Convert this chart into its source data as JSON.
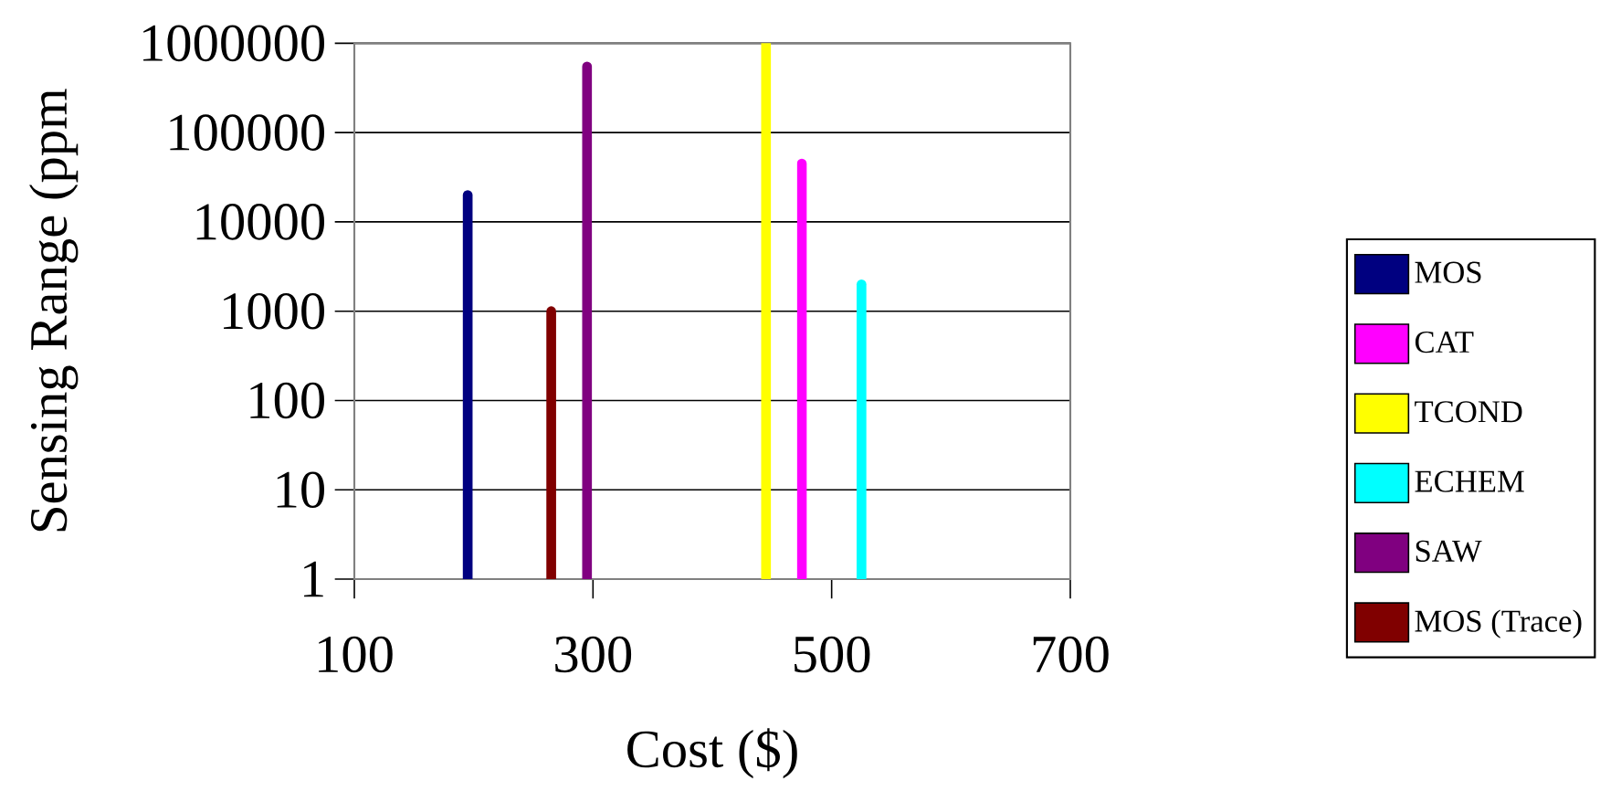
{
  "chart_data": {
    "type": "bar",
    "xlabel": "Cost ($)",
    "ylabel": "Sensing Range (ppm",
    "log": "y",
    "grid": "y",
    "legend": "right",
    "xlim": [
      100,
      700
    ],
    "xticks": [
      100,
      300,
      500,
      700
    ],
    "ylim": [
      1,
      1000000
    ],
    "yticks": [
      1,
      10,
      100,
      1000,
      10000,
      100000,
      1000000
    ],
    "series": [
      {
        "name": "MOS",
        "color": "#000080",
        "x": [
          195
        ],
        "values": [
          20000
        ]
      },
      {
        "name": "CAT",
        "color": "#ff00ff",
        "x": [
          475
        ],
        "values": [
          45000
        ]
      },
      {
        "name": "TCOND",
        "color": "#ffff00",
        "x": [
          445
        ],
        "values": [
          1000000
        ]
      },
      {
        "name": "ECHEM",
        "color": "#00ffff",
        "x": [
          525
        ],
        "values": [
          2000
        ]
      },
      {
        "name": "SAW",
        "color": "#800080",
        "x": [
          295
        ],
        "values": [
          550000
        ]
      },
      {
        "name": "MOS (Trace)",
        "color": "#800000",
        "x": [
          265
        ],
        "values": [
          1000
        ]
      }
    ]
  }
}
